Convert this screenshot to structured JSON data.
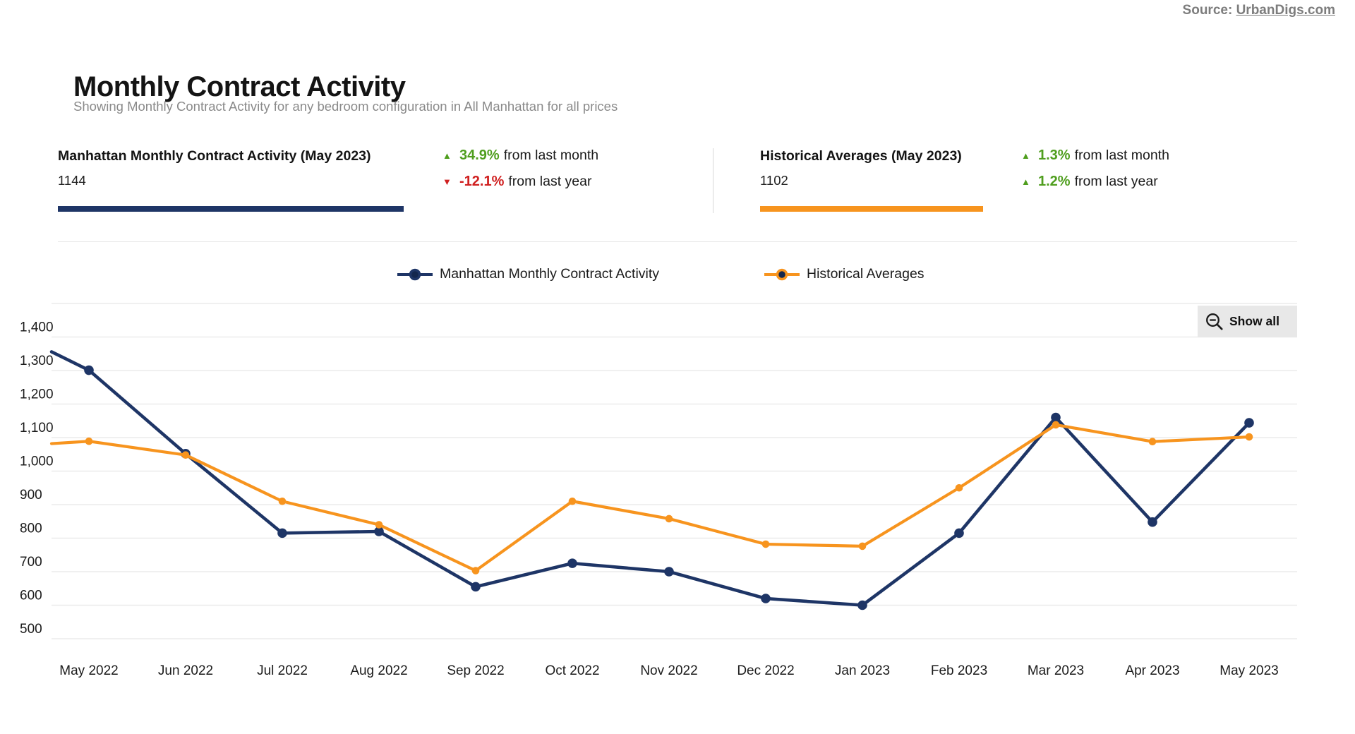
{
  "source": {
    "label": "Source:",
    "link_text": "UrbanDigs.com"
  },
  "header": {
    "title": "Monthly Contract Activity",
    "subtitle": "Showing Monthly Contract Activity for any bedroom configuration in All Manhattan for all prices"
  },
  "stat_cards": [
    {
      "title": "Manhattan Monthly Contract Activity  (May 2023)",
      "value": "1144",
      "accent_color": "#1e3566",
      "deltas": [
        {
          "direction": "up",
          "pct": "34.9%",
          "suffix": "from last month"
        },
        {
          "direction": "down",
          "pct": "-12.1%",
          "suffix": "from last year"
        }
      ]
    },
    {
      "title": "Historical Averages  (May 2023)",
      "value": "1102",
      "accent_color": "#f7941e",
      "deltas": [
        {
          "direction": "up",
          "pct": "1.3%",
          "suffix": "from last month"
        },
        {
          "direction": "up",
          "pct": "1.2%",
          "suffix": "from last year"
        }
      ]
    }
  ],
  "status_colors": {
    "up_green": "#4f9e1e",
    "down_red": "#d02020"
  },
  "legend": [
    {
      "label": "Manhattan Monthly Contract Activity",
      "color": "#1e3566"
    },
    {
      "label": "Historical Averages",
      "color": "#f7941e"
    }
  ],
  "toolbar": {
    "show_all_label": "Show all",
    "show_all_icon": "zoom-out-icon"
  },
  "chart_data": {
    "type": "line",
    "title": "Monthly Contract Activity",
    "categories": [
      "May 2022",
      "Jun 2022",
      "Jul 2022",
      "Aug 2022",
      "Sep 2022",
      "Oct 2022",
      "Nov 2022",
      "Dec 2022",
      "Jan 2023",
      "Feb 2023",
      "Mar 2023",
      "Apr 2023",
      "May 2023"
    ],
    "series": [
      {
        "name": "Manhattan Monthly Contract Activity",
        "color": "#1e3566",
        "values": [
          1301,
          1052,
          815,
          820,
          655,
          725,
          700,
          620,
          600,
          815,
          1160,
          848,
          1144
        ],
        "left_edge_partial_value": 1356
      },
      {
        "name": "Historical Averages",
        "color": "#f7941e",
        "values": [
          1089,
          1048,
          910,
          840,
          703,
          910,
          858,
          782,
          776,
          950,
          1138,
          1088,
          1102
        ],
        "left_edge_partial_value": 1082
      }
    ],
    "ylim": [
      500,
      1500
    ],
    "ytick_step": 100,
    "ytick_labels": [
      "500",
      "600",
      "700",
      "800",
      "900",
      "1,000",
      "1,100",
      "1,200",
      "1,300",
      "1,400"
    ],
    "grid": true,
    "gridline_color": "#ebebeb",
    "legend_position": "top",
    "zoom_state": "zoomed (partial month visible at left edge)"
  }
}
